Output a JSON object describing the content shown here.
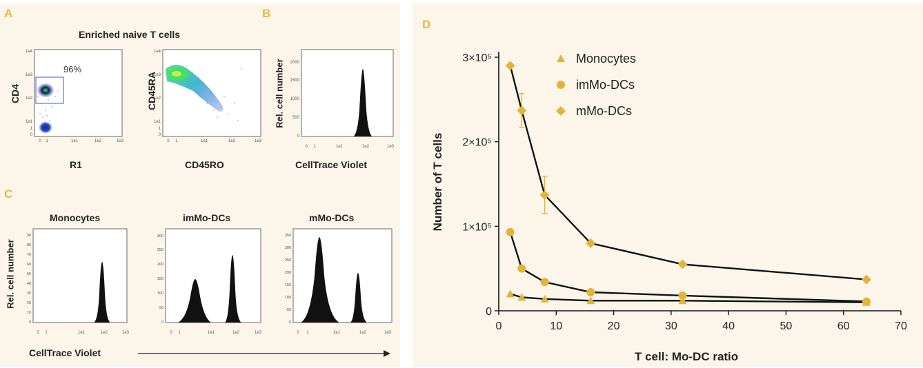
{
  "panels": {
    "A": {
      "label": "A",
      "title": "Enriched naive T cells",
      "plot1": {
        "ylabel": "CD4",
        "xlabel": "R1",
        "gate_pct": "96%",
        "yticks": [
          "1e4",
          "1e3",
          "1e2",
          "1e1",
          "1",
          "0"
        ],
        "xticks": [
          "0",
          "1",
          "1e1",
          "1e2",
          "1e3"
        ]
      },
      "plot2": {
        "ylabel": "CD45RA",
        "xlabel": "CD45RO",
        "yticks": [
          "1e4",
          "1e3",
          "1e2",
          "1e1",
          "1",
          "0"
        ],
        "xticks": [
          "0",
          "1",
          "1e1",
          "1e2",
          "1e3"
        ]
      }
    },
    "B": {
      "label": "B",
      "ylabel": "Rel. cell number",
      "xlabel": "CellTrace Violet",
      "yticks": [
        "2000",
        "1500",
        "1000",
        "500",
        "0"
      ],
      "xticks": [
        "0",
        "1",
        "1e1",
        "1e2",
        "1e3"
      ]
    },
    "C": {
      "label": "C",
      "ylabel": "Rel. cell number",
      "xlabel": "CellTrace Violet",
      "plots": [
        {
          "title": "Monocytes",
          "yticks": [
            "90",
            "80",
            "70",
            "60",
            "50",
            "40",
            "30",
            "20",
            "10",
            "0"
          ],
          "xticks": [
            "0",
            "1",
            "1e1",
            "1e2",
            "1e3"
          ]
        },
        {
          "title": "imMo-DCs",
          "yticks": [
            "300",
            "250",
            "200",
            "150",
            "100",
            "50",
            "0"
          ],
          "xticks": [
            "0",
            "1",
            "1e1",
            "1e2",
            "1e3"
          ]
        },
        {
          "title": "mMo-DCs",
          "yticks": [
            "350",
            "300",
            "250",
            "200",
            "150",
            "100",
            "50",
            "0"
          ],
          "xticks": [
            "0",
            "1",
            "1e1",
            "1e2",
            "1e3"
          ]
        }
      ]
    },
    "D": {
      "label": "D"
    }
  },
  "chart_data": {
    "type": "line",
    "panel": "D",
    "xlabel": "T cell: Mo-DC ratio",
    "ylabel": "Number of T cells",
    "xlim": [
      0,
      70
    ],
    "ylim": [
      0,
      300000
    ],
    "x_ticks": [
      "0",
      "10",
      "20",
      "30",
      "40",
      "50",
      "60",
      "70"
    ],
    "y_ticks": [
      {
        "value": 0,
        "label": "0"
      },
      {
        "value": 100000,
        "label": "1×10⁵"
      },
      {
        "value": 200000,
        "label": "2×10⁵"
      },
      {
        "value": 300000,
        "label": "3×10⁵"
      }
    ],
    "legend_position": "top-left",
    "x": [
      2,
      4,
      8,
      16,
      32,
      64
    ],
    "series": [
      {
        "name": "Monocytes",
        "marker": "triangle",
        "color": "#e3b43c",
        "values": [
          20000,
          16000,
          14000,
          12000,
          12000,
          10000
        ]
      },
      {
        "name": "imMo-DCs",
        "marker": "circle",
        "color": "#e3b43c",
        "values": [
          93000,
          50000,
          34000,
          22000,
          18000,
          11000
        ]
      },
      {
        "name": "mMo-DCs",
        "marker": "diamond",
        "color": "#e3b43c",
        "values": [
          290000,
          237000,
          137000,
          80000,
          55000,
          37000
        ],
        "errors": [
          0,
          20000,
          22000,
          0,
          0,
          0
        ]
      }
    ]
  }
}
